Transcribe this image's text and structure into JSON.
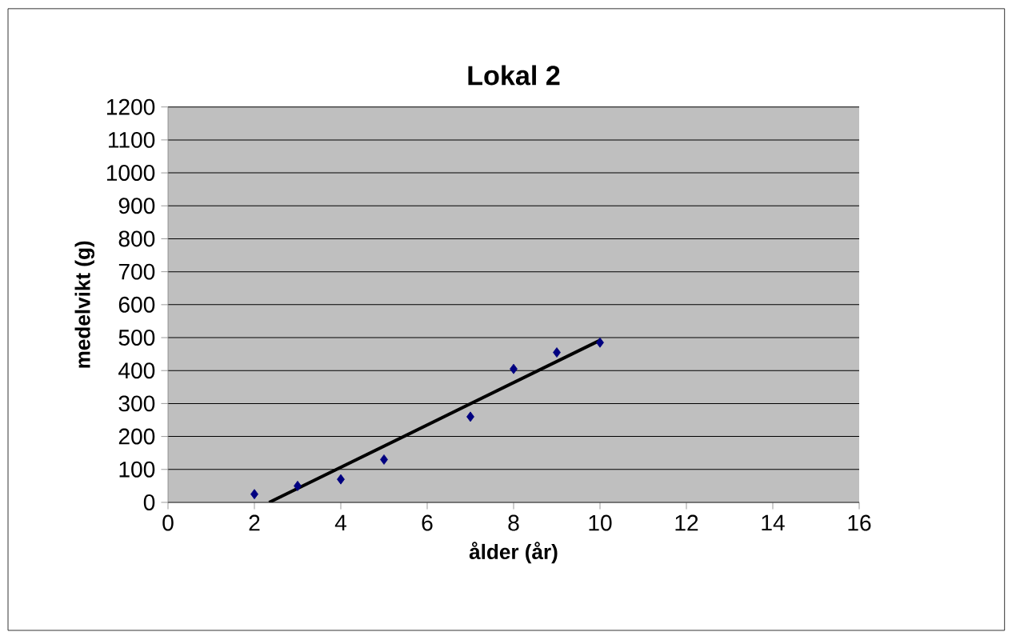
{
  "chart_data": {
    "type": "scatter",
    "title": "Lokal 2",
    "xlabel": "ålder (år)",
    "ylabel": "medelvikt (g)",
    "xlim": [
      0,
      16
    ],
    "xticks": [
      0,
      2,
      4,
      6,
      8,
      10,
      12,
      14,
      16
    ],
    "ylim": [
      0,
      1200
    ],
    "yticks": [
      0,
      100,
      200,
      300,
      400,
      500,
      600,
      700,
      800,
      900,
      1000,
      1100,
      1200
    ],
    "grid": "y",
    "series": [
      {
        "color": "#000080",
        "marker": "diamond",
        "x": [
          2,
          3,
          4,
          5,
          7,
          8,
          9,
          10
        ],
        "values": [
          25,
          50,
          70,
          130,
          260,
          405,
          455,
          485
        ]
      },
      {
        "type": "line",
        "color": "#000000",
        "line_style": "solid",
        "x": [
          2.34,
          10
        ],
        "values": [
          0,
          492
        ]
      }
    ]
  }
}
